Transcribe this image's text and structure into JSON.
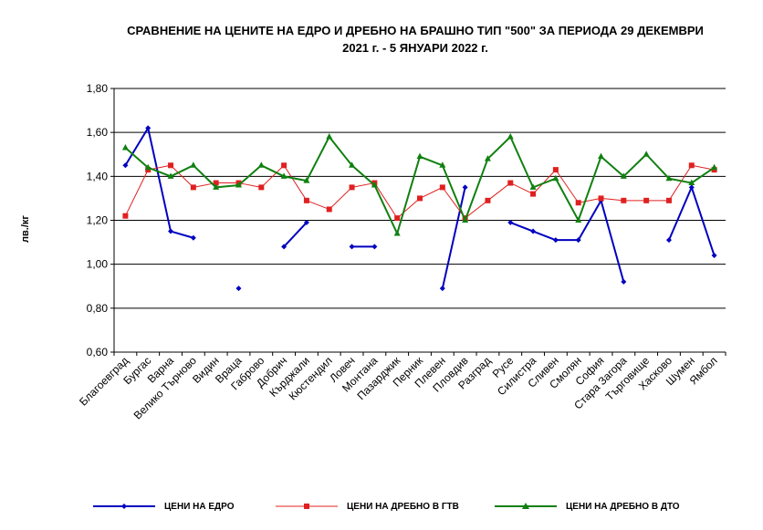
{
  "chart_data": {
    "type": "line",
    "title_lines": [
      "СРАВНЕНИЕ НА ЦЕНИТЕ НА ЕДРО И ДРЕБНО НА БРАШНО ТИП \"500\" ЗА ПЕРИОДА 29 ДЕКЕМВРИ",
      "2021 г. - 5 ЯНУАРИ 2022 г."
    ],
    "ylabel": "лв./кг",
    "ylim": [
      0.6,
      1.8
    ],
    "yticks": [
      "0,60",
      "0,80",
      "1,00",
      "1,20",
      "1,40",
      "1,60",
      "1,80"
    ],
    "grid": true,
    "legend_position": "bottom",
    "categories": [
      "Благоевград",
      "Бургас",
      "Варна",
      "Велико Търново",
      "Видин",
      "Враца",
      "Габрово",
      "Добрич",
      "Кърджали",
      "Кюстендил",
      "Ловеч",
      "Монтана",
      "Пазарджик",
      "Перник",
      "Плевен",
      "Пловдив",
      "Разград",
      "Русе",
      "Силистра",
      "Сливен",
      "Смолян",
      "София",
      "Стара Загора",
      "Търговище",
      "Хасково",
      "Шумен",
      "Ямбол"
    ],
    "series": [
      {
        "name": "ЦЕНИ НА ЕДРО",
        "color": "#0000c0",
        "marker": "diamond",
        "values": [
          1.45,
          1.62,
          1.15,
          1.12,
          null,
          0.89,
          null,
          1.08,
          1.19,
          null,
          1.08,
          1.08,
          null,
          null,
          0.89,
          1.35,
          null,
          1.19,
          1.15,
          1.11,
          1.11,
          1.29,
          0.92,
          null,
          1.11,
          1.35,
          1.04
        ]
      },
      {
        "name": "ЦЕНИ НА ДРЕБНО В ГТВ",
        "color": "#e02020",
        "marker": "square",
        "values": [
          1.22,
          1.43,
          1.45,
          1.35,
          1.37,
          1.37,
          1.35,
          1.45,
          1.29,
          1.25,
          1.35,
          1.37,
          1.21,
          1.3,
          1.35,
          1.21,
          1.29,
          1.37,
          1.32,
          1.43,
          1.28,
          1.3,
          1.29,
          1.29,
          1.29,
          1.45,
          1.43
        ]
      },
      {
        "name": "ЦЕНИ НА ДРЕБНО В ДТО",
        "color": "#108010",
        "marker": "triangle",
        "values": [
          1.53,
          1.44,
          1.4,
          1.45,
          1.35,
          1.36,
          1.45,
          1.4,
          1.38,
          1.58,
          1.45,
          1.36,
          1.14,
          1.49,
          1.45,
          1.2,
          1.48,
          1.58,
          1.35,
          1.39,
          1.2,
          1.49,
          1.4,
          1.5,
          1.39,
          1.37,
          1.44
        ]
      }
    ]
  }
}
